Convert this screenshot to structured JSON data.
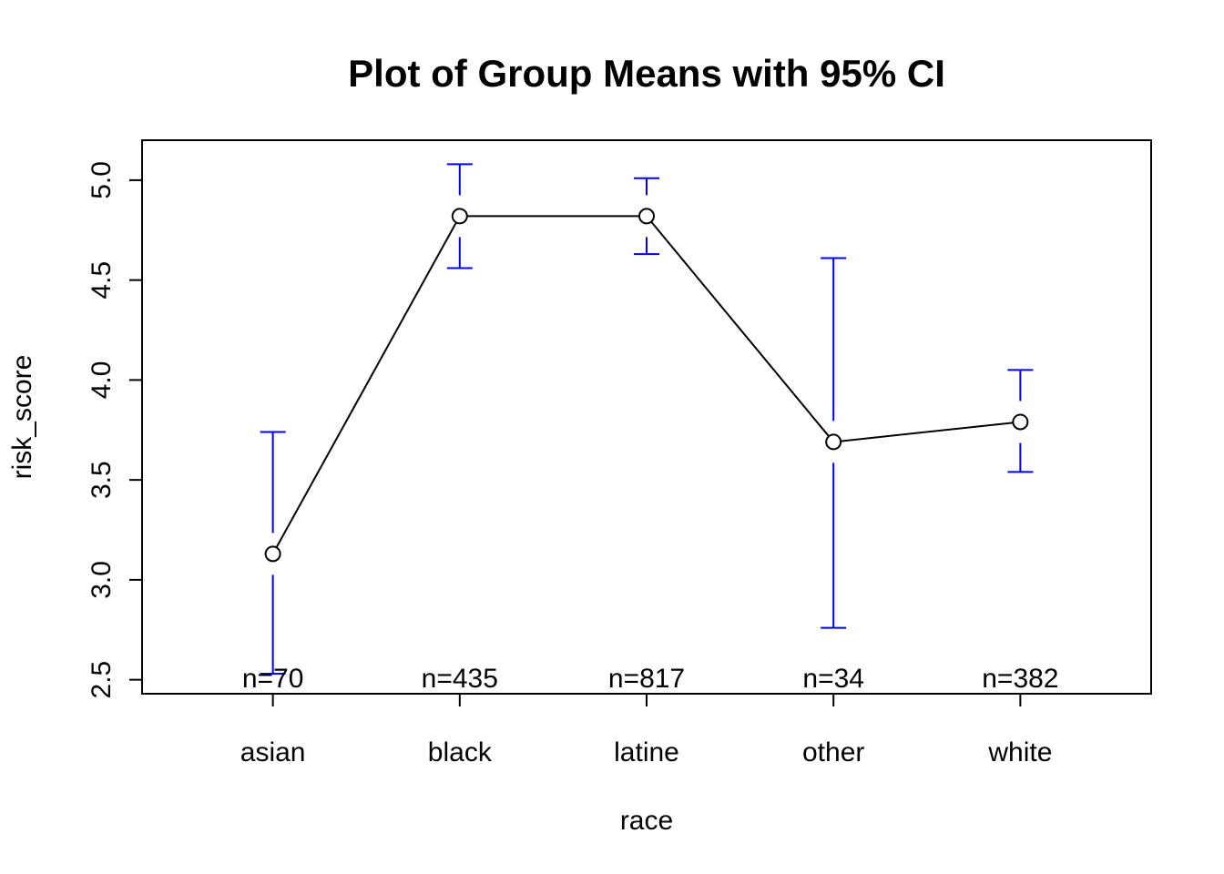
{
  "chart_data": {
    "type": "line",
    "title": "Plot of Group Means with 95% CI",
    "xlabel": "race",
    "ylabel": "risk_score",
    "categories": [
      "asian",
      "black",
      "latine",
      "other",
      "white"
    ],
    "series": [
      {
        "name": "group mean risk_score",
        "values": [
          3.13,
          4.82,
          4.82,
          3.69,
          3.79
        ]
      }
    ],
    "ci_lower": [
      2.53,
      4.56,
      4.63,
      2.76,
      3.54
    ],
    "ci_upper": [
      3.74,
      5.08,
      5.01,
      4.61,
      4.05
    ],
    "n_labels": [
      "n=70",
      "n=435",
      "n=817",
      "n=34",
      "n=382"
    ],
    "y_ticks": [
      2.5,
      3.0,
      3.5,
      4.0,
      4.5,
      5.0
    ],
    "y_tick_labels": [
      "2.5",
      "3.0",
      "3.5",
      "4.0",
      "4.5",
      "5.0"
    ],
    "xlim": [
      0.3,
      5.7
    ],
    "ylim": [
      2.43,
      5.2
    ],
    "grid": false,
    "legend": "none",
    "colors": {
      "errorbar": "#0000FF",
      "line": "#000000",
      "marker_stroke": "#000000",
      "marker_fill": "#FFFFFF",
      "text": "#000000",
      "background": "#FFFFFF"
    }
  }
}
